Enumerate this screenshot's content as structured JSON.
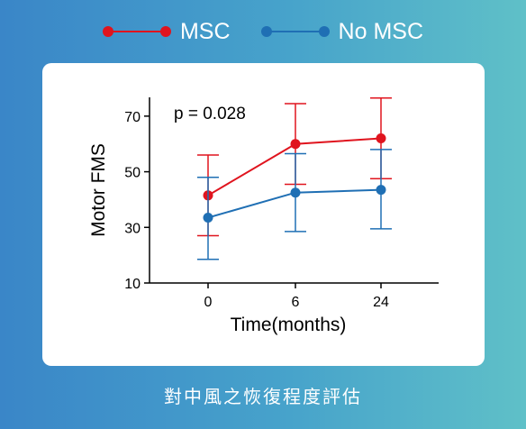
{
  "legend": {
    "series_0": "MSC",
    "series_1": "No MSC"
  },
  "caption": "對中風之恢復程度評估",
  "chart_data": {
    "type": "line",
    "annotation": "p = 0.028",
    "xlabel": "Time(months)",
    "ylabel": "Motor FMS",
    "x": [
      "0",
      "6",
      "24"
    ],
    "ylim": [
      10,
      80
    ],
    "yticks": [
      10,
      30,
      50,
      70
    ],
    "grid": false,
    "legend_position": "top",
    "series": [
      {
        "name": "MSC",
        "color": "#e0141e",
        "values": [
          41.5,
          60,
          62
        ],
        "err_low": [
          27,
          45.5,
          47.5
        ],
        "err_high": [
          56,
          74.5,
          76.5
        ]
      },
      {
        "name": "No MSC",
        "color": "#1f6fb4",
        "values": [
          33.5,
          42.5,
          43.5
        ],
        "err_low": [
          18.5,
          28.5,
          29.5
        ],
        "err_high": [
          48,
          56.5,
          58
        ]
      }
    ]
  }
}
